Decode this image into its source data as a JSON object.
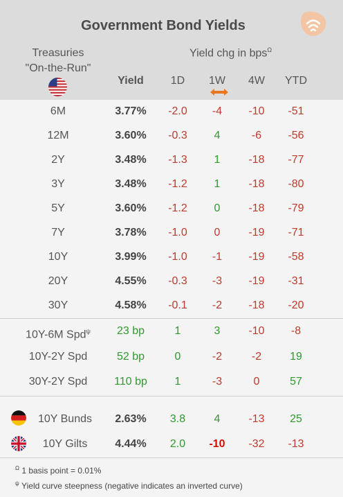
{
  "title": "Government Bond Yields",
  "header": {
    "left_line1": "Treasuries",
    "left_line2": "\"On-the-Run\"",
    "yield": "Yield",
    "chg_label": "Yield chg in bps",
    "chg_sup": "Ω",
    "cols": [
      "1D",
      "1W",
      "4W",
      "YTD"
    ]
  },
  "treasuries": [
    {
      "label": "6M",
      "yield": "3.77%",
      "d1": "-2.0",
      "w1": "-4",
      "w4": "-10",
      "ytd": "-51"
    },
    {
      "label": "12M",
      "yield": "3.60%",
      "d1": "-0.3",
      "w1": "4",
      "w4": "-6",
      "ytd": "-56"
    },
    {
      "label": "2Y",
      "yield": "3.48%",
      "d1": "-1.3",
      "w1": "1",
      "w4": "-18",
      "ytd": "-77"
    },
    {
      "label": "3Y",
      "yield": "3.48%",
      "d1": "-1.2",
      "w1": "1",
      "w4": "-18",
      "ytd": "-80"
    },
    {
      "label": "5Y",
      "yield": "3.60%",
      "d1": "-1.2",
      "w1": "0",
      "w4": "-18",
      "ytd": "-79"
    },
    {
      "label": "7Y",
      "yield": "3.78%",
      "d1": "-1.0",
      "w1": "0",
      "w4": "-19",
      "ytd": "-71"
    },
    {
      "label": "10Y",
      "yield": "3.99%",
      "d1": "-1.0",
      "w1": "-1",
      "w4": "-19",
      "ytd": "-58"
    },
    {
      "label": "20Y",
      "yield": "4.55%",
      "d1": "-0.3",
      "w1": "-3",
      "w4": "-19",
      "ytd": "-31"
    },
    {
      "label": "30Y",
      "yield": "4.58%",
      "d1": "-0.1",
      "w1": "-2",
      "w4": "-18",
      "ytd": "-20"
    }
  ],
  "spreads": [
    {
      "label": "10Y-6M Spd",
      "sup": "ψ",
      "yield": "23 bp",
      "d1": "1",
      "w1": "3",
      "w4": "-10",
      "ytd": "-8"
    },
    {
      "label": "10Y-2Y Spd",
      "sup": "",
      "yield": "52 bp",
      "d1": "0",
      "w1": "-2",
      "w4": "-2",
      "ytd": "19"
    },
    {
      "label": "30Y-2Y Spd",
      "sup": "",
      "yield": "110 bp",
      "d1": "1",
      "w1": "-3",
      "w4": "0",
      "ytd": "57"
    }
  ],
  "intl": [
    {
      "label": "10Y Bunds",
      "yield": "2.63%",
      "d1": "3.8",
      "w1": "4",
      "w4": "-13",
      "ytd": "25"
    },
    {
      "label": "10Y Gilts",
      "yield": "4.44%",
      "d1": "2.0",
      "w1": "-10",
      "w4": "-32",
      "ytd": "-13"
    }
  ],
  "footnotes": [
    {
      "sup": "Ω",
      "text": "1 basis point = 0.01%"
    },
    {
      "sup": "ψ",
      "text": "Yield curve steepness (negative indicates an inverted curve)"
    }
  ],
  "colors": {
    "negative": "#c0392b",
    "positive": "#2e9a2e",
    "neutral": "#c0392b",
    "header_bg": "#dcdcdc",
    "page_bg": "#f4f4f4"
  }
}
